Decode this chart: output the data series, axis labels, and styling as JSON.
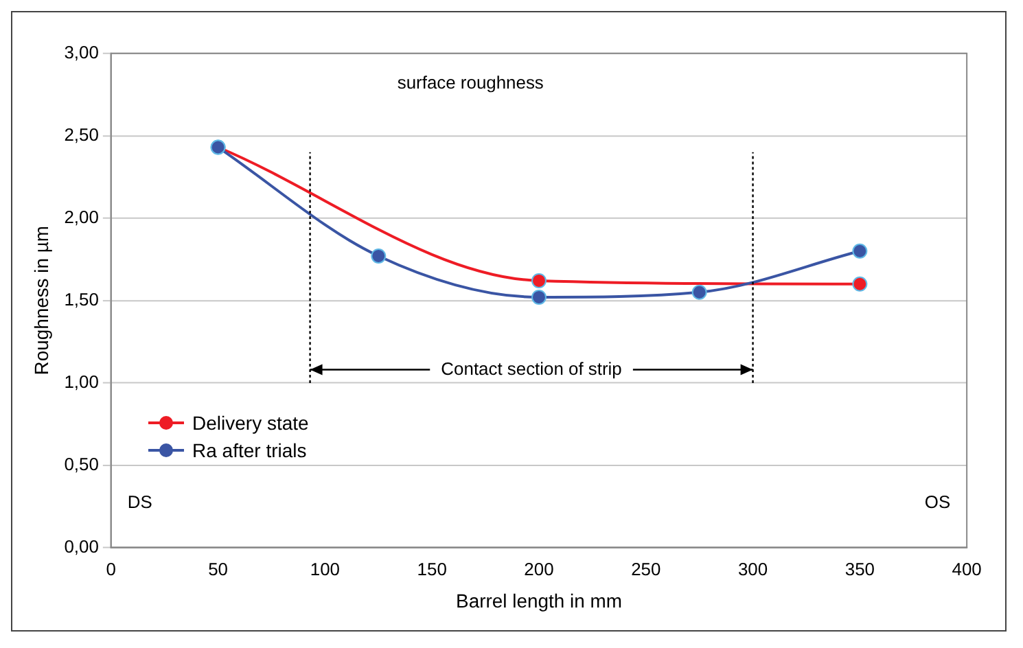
{
  "chart_data": {
    "type": "line",
    "title": "surface roughness",
    "xlabel": "Barrel length in mm",
    "ylabel": "Roughness in µm",
    "series": [
      {
        "name": "Delivery state",
        "color": "#ee1c25",
        "x": [
          50,
          200,
          350
        ],
        "values": [
          2.43,
          1.62,
          1.6
        ]
      },
      {
        "name": "Ra after trials",
        "color": "#3a55a4",
        "x": [
          50,
          125,
          200,
          275,
          350
        ],
        "values": [
          2.43,
          1.77,
          1.52,
          1.55,
          1.8
        ]
      }
    ],
    "xlim": [
      0,
      400
    ],
    "xticks": [
      0,
      50,
      100,
      150,
      200,
      250,
      300,
      350,
      400
    ],
    "ylim": [
      0,
      3
    ],
    "yticks": [
      {
        "value": 0,
        "label": "0,00"
      },
      {
        "value": 0.5,
        "label": "0,50"
      },
      {
        "value": 1,
        "label": "1,00"
      },
      {
        "value": 1.5,
        "label": "1,50"
      },
      {
        "value": 2,
        "label": "2,00"
      },
      {
        "value": 2.5,
        "label": "2,50"
      },
      {
        "value": 3,
        "label": "3,00"
      }
    ],
    "ref_lines": [
      {
        "axis": "x",
        "value": 93,
        "line_style": "dotted",
        "color": "#000000"
      },
      {
        "axis": "x",
        "value": 300,
        "line_style": "dotted",
        "color": "#000000"
      }
    ],
    "annotations": [
      "DS",
      "OS",
      {
        "text": "Contact section of strip",
        "x": 300,
        "y": 1.08
      }
    ],
    "grid": "y",
    "legend": "left",
    "marker": "circle",
    "line_style": "solid"
  }
}
